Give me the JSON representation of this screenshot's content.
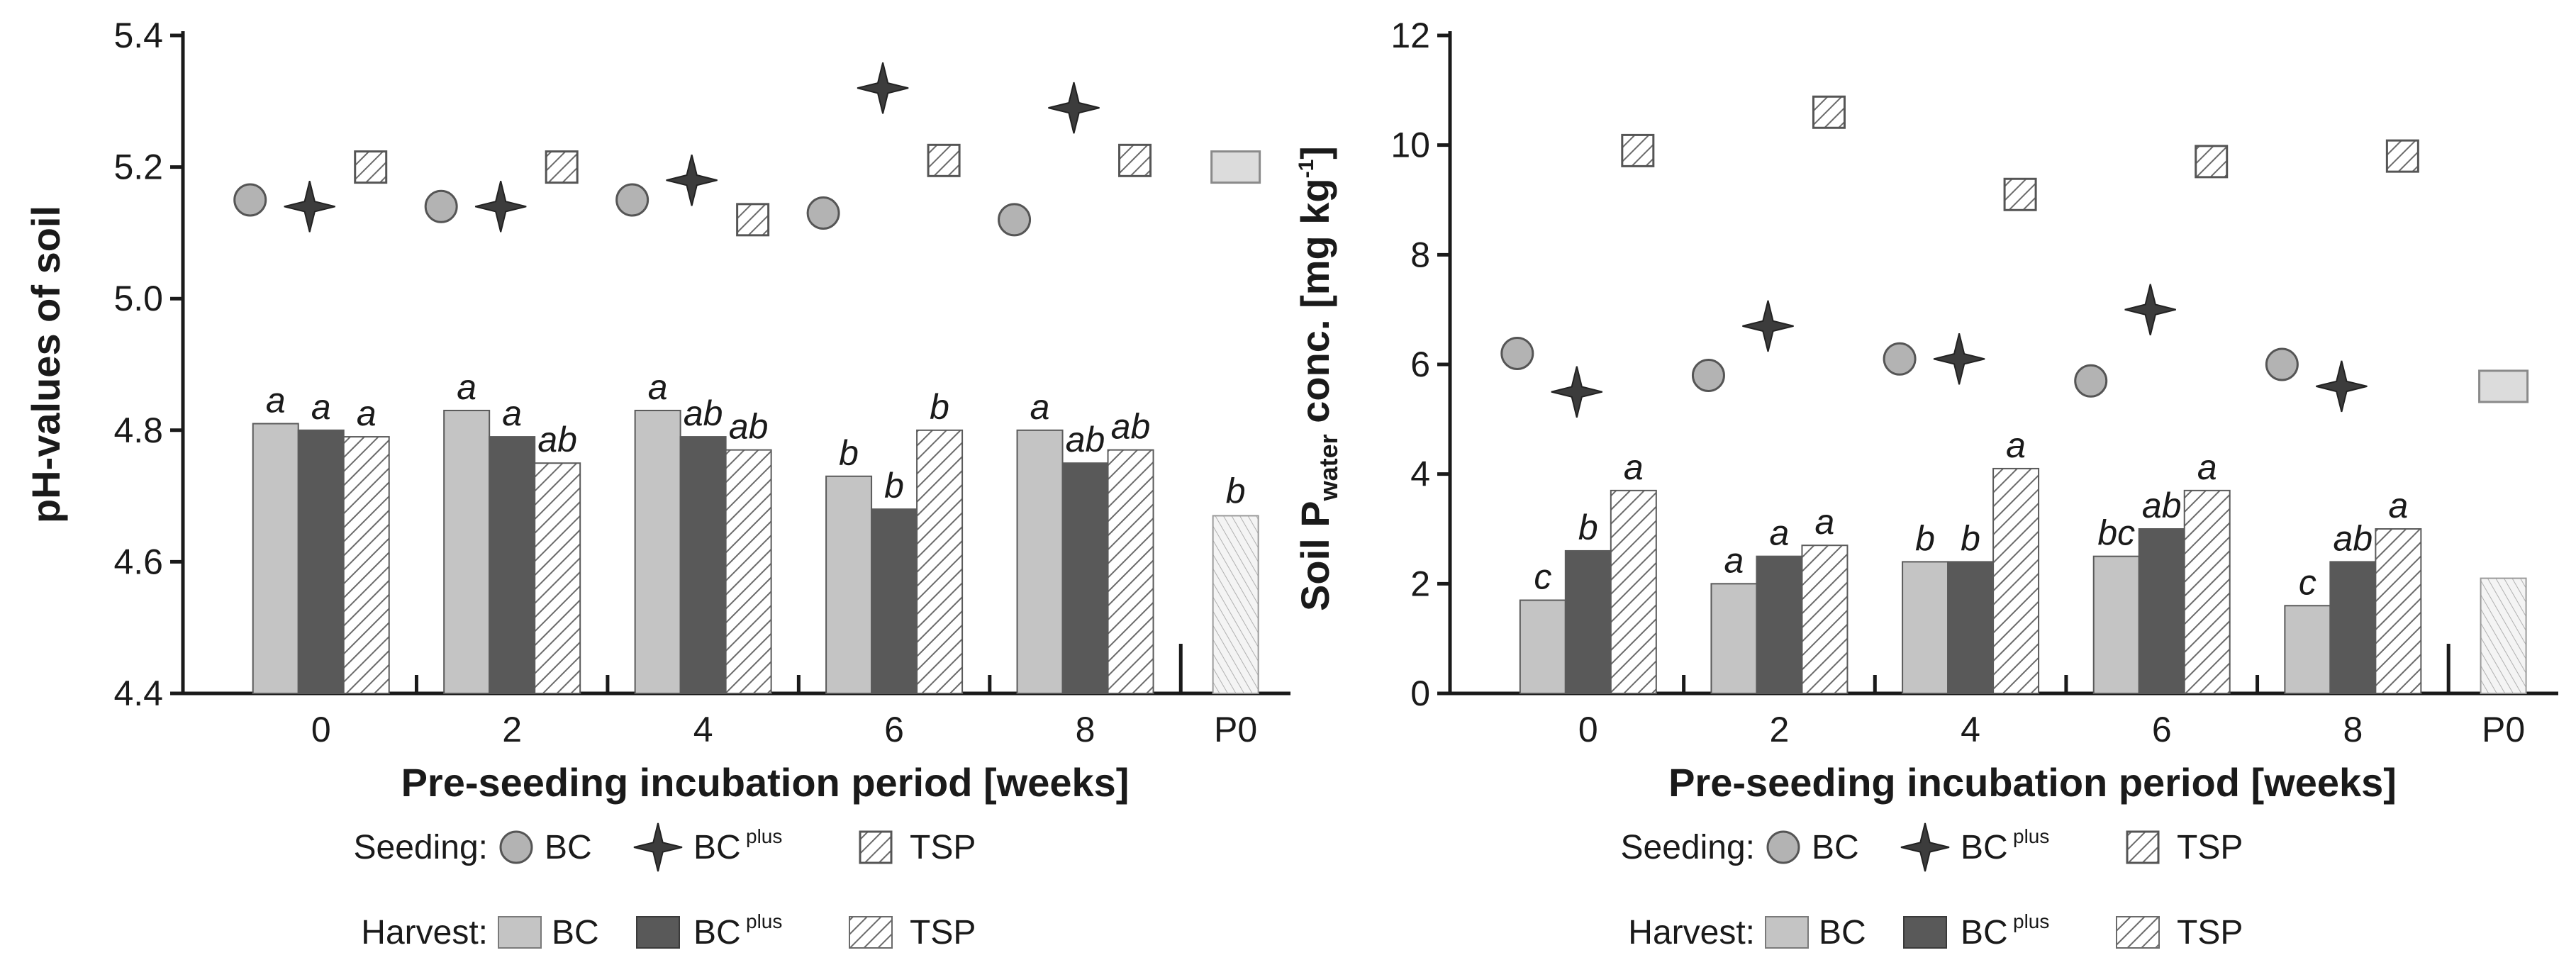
{
  "colors": {
    "bc_fill": "#c4c4c4",
    "bcplus_fill": "#595959",
    "tsp_stroke": "#6a6a6a",
    "seed_marker_fill": "#b3b3b3",
    "star_fill": "#3c3c3c",
    "p0_seed_fill": "#dcdcdc",
    "p0_bar_fill": "#eeeeee",
    "axis": "#1a1a1a"
  },
  "chart_data": [
    {
      "type": "bar",
      "title": "",
      "xlabel": "Pre-seeding incubation period [weeks]",
      "ylabel": "pH-values of soil",
      "ylim": [
        4.4,
        5.4
      ],
      "yticks": [
        "4.4",
        "4.6",
        "4.8",
        "5.0",
        "5.2",
        "5.4"
      ],
      "categories": [
        "0",
        "2",
        "4",
        "6",
        "8",
        "P0"
      ],
      "harvest_series": [
        {
          "name": "BC",
          "values": [
            4.81,
            4.83,
            4.83,
            4.73,
            4.8,
            null
          ],
          "labels": [
            "a",
            "a",
            "a",
            "b",
            "a",
            ""
          ]
        },
        {
          "name": "BCplus",
          "values": [
            4.8,
            4.79,
            4.79,
            4.68,
            4.75,
            null
          ],
          "labels": [
            "a",
            "a",
            "ab",
            "b",
            "ab",
            ""
          ]
        },
        {
          "name": "TSP",
          "values": [
            4.79,
            4.75,
            4.77,
            4.8,
            4.77,
            null
          ],
          "labels": [
            "a",
            "ab",
            "ab",
            "b",
            "ab",
            ""
          ]
        }
      ],
      "p0_harvest": {
        "value": 4.67,
        "label": "b"
      },
      "seeding_series": [
        {
          "name": "BC",
          "values": [
            5.15,
            5.14,
            5.15,
            5.13,
            5.12,
            null
          ]
        },
        {
          "name": "BCplus",
          "values": [
            5.14,
            5.14,
            5.18,
            5.32,
            5.29,
            null
          ]
        },
        {
          "name": "TSP",
          "values": [
            5.2,
            5.2,
            5.12,
            5.21,
            5.21,
            null
          ]
        }
      ],
      "p0_seeding": {
        "value": 5.2
      }
    },
    {
      "type": "bar",
      "title": "",
      "xlabel": "Pre-seeding incubation period [weeks]",
      "ylabel_parts": {
        "main": "Soil P",
        "sub": "water",
        "rest": " conc. [mg kg",
        "sup": "-1",
        "end": "]"
      },
      "ylim": [
        0,
        12
      ],
      "yticks": [
        "0",
        "2",
        "4",
        "6",
        "8",
        "10",
        "12"
      ],
      "categories": [
        "0",
        "2",
        "4",
        "6",
        "8",
        "P0"
      ],
      "harvest_series": [
        {
          "name": "BC",
          "values": [
            1.7,
            2.0,
            2.4,
            2.5,
            1.6,
            null
          ],
          "labels": [
            "c",
            "a",
            "b",
            "bc",
            "c",
            ""
          ]
        },
        {
          "name": "BCplus",
          "values": [
            2.6,
            2.5,
            2.4,
            3.0,
            2.4,
            null
          ],
          "labels": [
            "b",
            "a",
            "b",
            "ab",
            "ab",
            ""
          ]
        },
        {
          "name": "TSP",
          "values": [
            3.7,
            2.7,
            4.1,
            3.7,
            3.0,
            null
          ],
          "labels": [
            "a",
            "a",
            "a",
            "a",
            "a",
            ""
          ]
        }
      ],
      "p0_harvest": {
        "value": 2.1,
        "label": ""
      },
      "seeding_series": [
        {
          "name": "BC",
          "values": [
            6.2,
            5.8,
            6.1,
            5.7,
            6.0,
            null
          ]
        },
        {
          "name": "BCplus",
          "values": [
            5.5,
            6.7,
            6.1,
            7.0,
            5.6,
            null
          ]
        },
        {
          "name": "TSP",
          "values": [
            9.9,
            10.6,
            9.1,
            9.7,
            9.8,
            null
          ]
        }
      ],
      "p0_seeding": {
        "value": 5.6
      }
    }
  ],
  "legend": {
    "seeding_label": "Seeding:",
    "harvest_label": "Harvest:",
    "bc": "BC",
    "bcplus_main": "BC",
    "bcplus_sup": "plus",
    "tsp": "TSP"
  }
}
